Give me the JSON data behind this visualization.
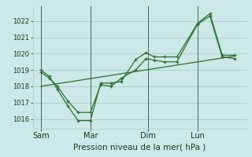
{
  "background_color": "#cce8e8",
  "grid_color": "#aacccc",
  "line_color": "#2d6e2d",
  "xlabel": "Pression niveau de la mer( hPa )",
  "yticks": [
    1016,
    1017,
    1018,
    1019,
    1020,
    1021,
    1022
  ],
  "ylim": [
    1015.4,
    1022.9
  ],
  "xlim": [
    0,
    104
  ],
  "xtick_positions": [
    4,
    28,
    56,
    80
  ],
  "xtick_labels": [
    "Sam",
    "Mar",
    "Dim",
    "Lun"
  ],
  "vline_positions": [
    4,
    28,
    56,
    80
  ],
  "series1_x": [
    4,
    8,
    12,
    17,
    22,
    28,
    33,
    38,
    43,
    50,
    55,
    59,
    64,
    70,
    80,
    86,
    92,
    98
  ],
  "series1_y": [
    1019.0,
    1018.6,
    1017.8,
    1016.8,
    1015.9,
    1015.9,
    1018.2,
    1018.2,
    1018.3,
    1019.65,
    1020.05,
    1019.8,
    1019.8,
    1019.8,
    1021.85,
    1022.45,
    1019.9,
    1019.9
  ],
  "series2_x": [
    4,
    8,
    12,
    17,
    22,
    28,
    33,
    38,
    43,
    50,
    55,
    59,
    64,
    70,
    80,
    86,
    92,
    98
  ],
  "series2_y": [
    1018.85,
    1018.5,
    1018.0,
    1017.1,
    1016.4,
    1016.4,
    1018.1,
    1018.0,
    1018.5,
    1019.0,
    1019.7,
    1019.6,
    1019.5,
    1019.5,
    1021.8,
    1022.3,
    1019.8,
    1019.7
  ],
  "trend_x": [
    4,
    98
  ],
  "trend_y": [
    1018.0,
    1019.85
  ]
}
